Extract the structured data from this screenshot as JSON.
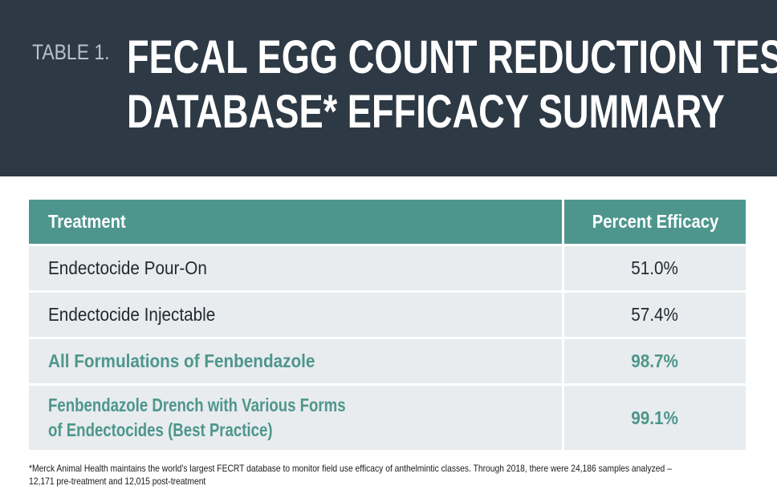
{
  "header": {
    "label": "TABLE 1.",
    "title_line1": "FECAL EGG COUNT REDUCTION TEST",
    "title_line2": "DATABASE* EFFICACY SUMMARY"
  },
  "table": {
    "columns": [
      "Treatment",
      "Percent Efficacy"
    ],
    "rows": [
      {
        "treatment": "Endectocide Pour-On",
        "efficacy": "51.0%"
      },
      {
        "treatment": "Endectocide Injectable",
        "efficacy": "57.4%"
      },
      {
        "treatment": "All Formulations of Fenbendazole",
        "efficacy": "98.7%"
      },
      {
        "treatment_line1": "Fenbendazole Drench with Various Forms",
        "treatment_line2": "of Endectocides (Best Practice)",
        "efficacy": "99.1%"
      }
    ]
  },
  "footnote": {
    "line1": "*Merck Animal Health maintains the world's largest FECRT database to monitor field use efficacy of anthelmintic classes. Through 2018, there were 24,186 samples analyzed –",
    "line2": "12,171 pre-treatment and 12,015 post-treatment"
  },
  "colors": {
    "header_bg": "#2d3945",
    "accent_teal": "#4e968d",
    "row_bg": "#e8ecee"
  }
}
